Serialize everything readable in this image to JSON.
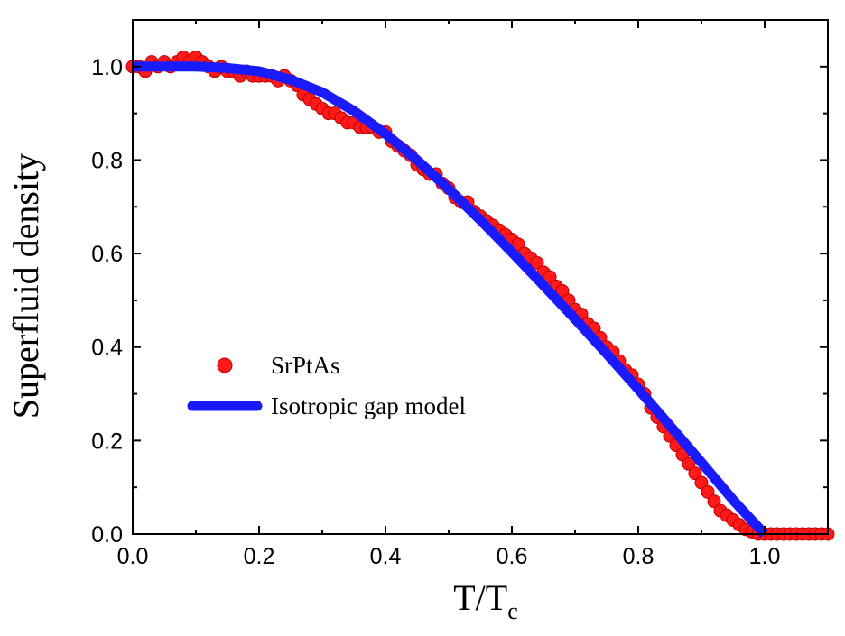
{
  "chart_data": {
    "type": "scatter",
    "xlabel": "T/T",
    "xlabel_sub": "c",
    "ylabel": "Superfluid density",
    "xlim": [
      0.0,
      1.1
    ],
    "ylim": [
      0.0,
      1.1
    ],
    "xticks": [
      0.0,
      0.2,
      0.4,
      0.6,
      0.8,
      1.0
    ],
    "yticks": [
      0.0,
      0.2,
      0.4,
      0.6,
      0.8,
      1.0
    ],
    "xtick_labels": [
      "0.0",
      "0.2",
      "0.4",
      "0.6",
      "0.8",
      "1.0"
    ],
    "ytick_labels": [
      "0.0",
      "0.2",
      "0.4",
      "0.6",
      "0.8",
      "1.0"
    ],
    "legend_position": "center-left",
    "grid": false,
    "series": [
      {
        "name": "SrPtAs",
        "kind": "markers",
        "color": "#ff1a1a",
        "x": [
          0.0,
          0.01,
          0.02,
          0.03,
          0.04,
          0.05,
          0.06,
          0.07,
          0.08,
          0.09,
          0.1,
          0.11,
          0.12,
          0.13,
          0.14,
          0.15,
          0.16,
          0.17,
          0.18,
          0.19,
          0.2,
          0.21,
          0.22,
          0.23,
          0.24,
          0.25,
          0.26,
          0.27,
          0.28,
          0.29,
          0.3,
          0.31,
          0.32,
          0.33,
          0.34,
          0.35,
          0.36,
          0.37,
          0.38,
          0.39,
          0.4,
          0.41,
          0.42,
          0.43,
          0.44,
          0.45,
          0.46,
          0.47,
          0.48,
          0.49,
          0.5,
          0.51,
          0.52,
          0.53,
          0.54,
          0.55,
          0.56,
          0.57,
          0.58,
          0.59,
          0.6,
          0.61,
          0.62,
          0.63,
          0.64,
          0.65,
          0.66,
          0.67,
          0.68,
          0.69,
          0.7,
          0.71,
          0.72,
          0.73,
          0.74,
          0.75,
          0.76,
          0.77,
          0.78,
          0.79,
          0.8,
          0.81,
          0.82,
          0.83,
          0.84,
          0.85,
          0.86,
          0.87,
          0.88,
          0.89,
          0.9,
          0.91,
          0.92,
          0.93,
          0.94,
          0.95,
          0.96,
          0.97,
          0.98,
          0.99,
          1.0,
          1.01,
          1.02,
          1.03,
          1.04,
          1.05,
          1.06,
          1.07,
          1.08,
          1.09,
          1.1
        ],
        "y": [
          1.0,
          1.0,
          0.99,
          1.01,
          1.0,
          1.01,
          1.0,
          1.01,
          1.02,
          1.01,
          1.02,
          1.01,
          1.0,
          0.99,
          1.0,
          0.99,
          0.99,
          0.98,
          0.99,
          0.98,
          0.98,
          0.98,
          0.98,
          0.97,
          0.98,
          0.97,
          0.96,
          0.94,
          0.93,
          0.92,
          0.91,
          0.9,
          0.9,
          0.89,
          0.88,
          0.88,
          0.87,
          0.87,
          0.87,
          0.86,
          0.86,
          0.84,
          0.83,
          0.82,
          0.81,
          0.79,
          0.78,
          0.77,
          0.77,
          0.75,
          0.74,
          0.72,
          0.71,
          0.71,
          0.69,
          0.68,
          0.67,
          0.66,
          0.65,
          0.64,
          0.63,
          0.62,
          0.6,
          0.59,
          0.58,
          0.56,
          0.55,
          0.53,
          0.52,
          0.5,
          0.48,
          0.47,
          0.45,
          0.44,
          0.42,
          0.4,
          0.39,
          0.37,
          0.35,
          0.34,
          0.32,
          0.3,
          0.27,
          0.25,
          0.23,
          0.21,
          0.19,
          0.17,
          0.15,
          0.13,
          0.11,
          0.09,
          0.07,
          0.05,
          0.04,
          0.03,
          0.02,
          0.01,
          0.005,
          0.0,
          0.0,
          0.0,
          0.0,
          0.0,
          0.0,
          0.0,
          0.0,
          0.0,
          0.0,
          0.0,
          0.0
        ]
      },
      {
        "name": "Isotropic gap model",
        "kind": "line",
        "color": "#1a1aff",
        "x": [
          0.0,
          0.05,
          0.1,
          0.15,
          0.2,
          0.25,
          0.3,
          0.35,
          0.4,
          0.45,
          0.5,
          0.55,
          0.6,
          0.65,
          0.7,
          0.75,
          0.8,
          0.85,
          0.9,
          0.95,
          0.98,
          1.0
        ],
        "y": [
          1.0,
          1.0,
          1.0,
          0.997,
          0.99,
          0.972,
          0.945,
          0.905,
          0.856,
          0.8,
          0.738,
          0.672,
          0.603,
          0.532,
          0.46,
          0.386,
          0.31,
          0.232,
          0.153,
          0.073,
          0.029,
          0.0
        ]
      }
    ]
  }
}
